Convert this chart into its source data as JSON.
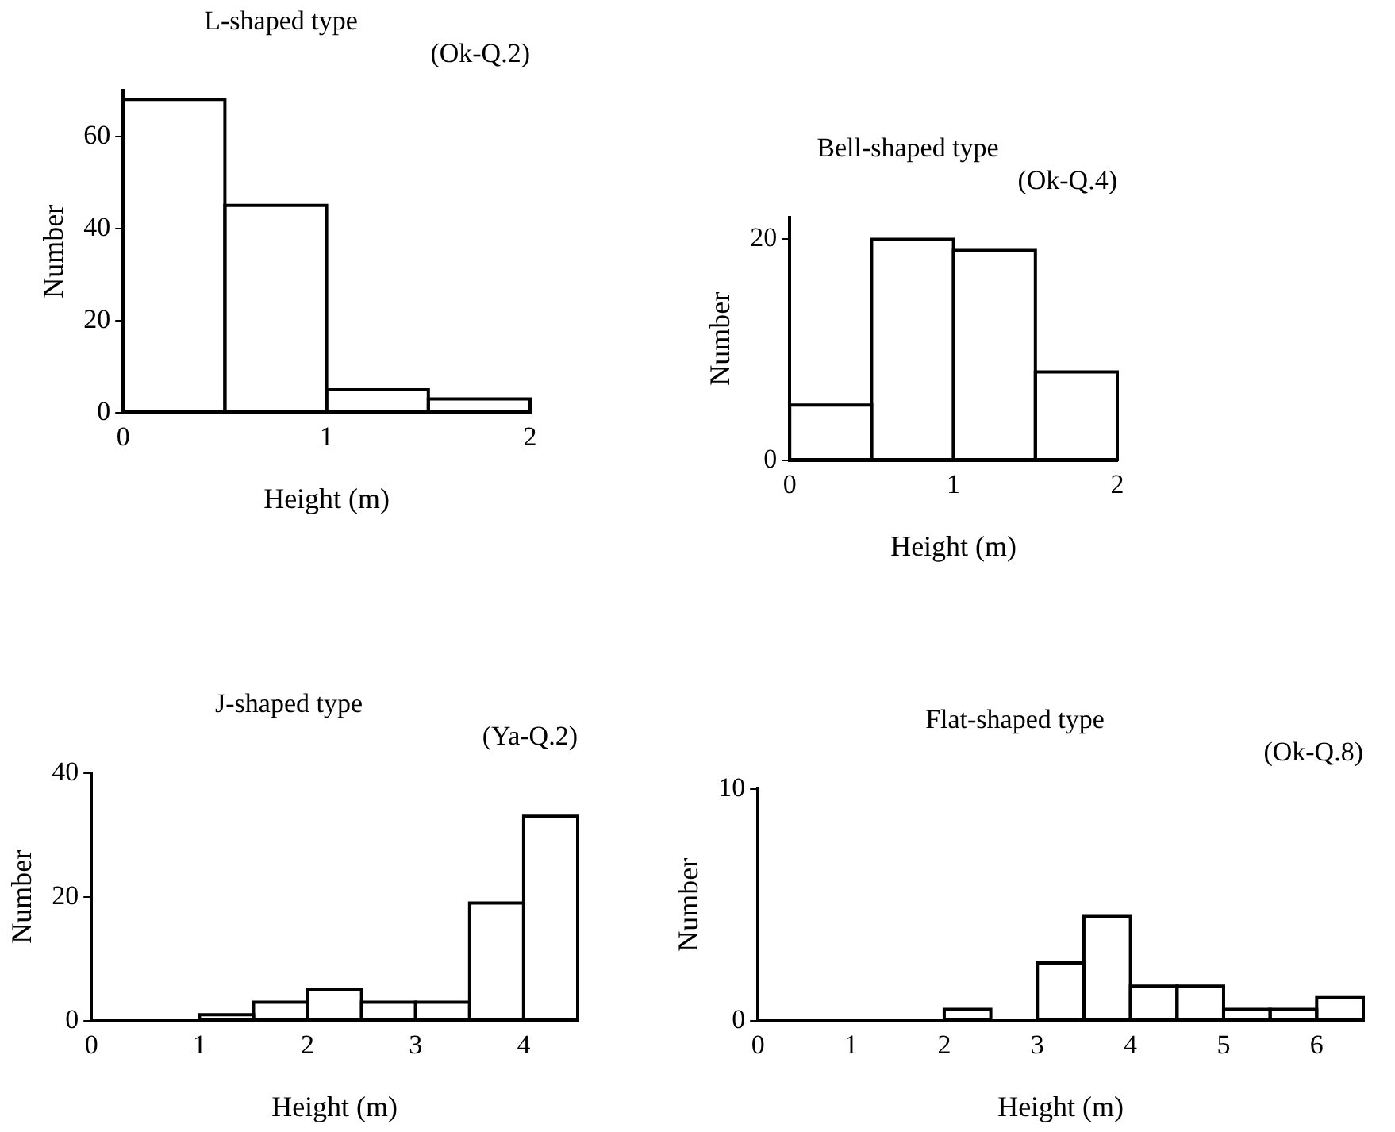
{
  "chart_data": [
    {
      "type": "histogram",
      "title": "L-shaped type",
      "subtitle": "(Ok-Q.2)",
      "xlabel": "Height (m)",
      "ylabel": "Number",
      "bins": [
        0,
        0.5,
        1,
        1.5,
        2
      ],
      "values": [
        68,
        45,
        5,
        3
      ],
      "color": "#000000",
      "xlim": [
        0,
        2
      ],
      "xticks": [
        0,
        1,
        2
      ],
      "ylim": [
        0,
        70
      ],
      "yticks": [
        0,
        20,
        40,
        60
      ],
      "grid": false,
      "legend": false
    },
    {
      "type": "histogram",
      "title": "Bell-shaped type",
      "subtitle": "(Ok-Q.4)",
      "xlabel": "Height (m)",
      "ylabel": "Number",
      "bins": [
        0,
        0.5,
        1,
        1.5,
        2
      ],
      "values": [
        5,
        20,
        19,
        8
      ],
      "color": "#000000",
      "xlim": [
        0,
        2
      ],
      "xticks": [
        0,
        1,
        2
      ],
      "ylim": [
        0,
        22
      ],
      "yticks": [
        0,
        20
      ],
      "grid": false,
      "legend": false
    },
    {
      "type": "histogram",
      "title": "J-shaped type",
      "subtitle": "(Ya-Q.2)",
      "xlabel": "Height (m)",
      "ylabel": "Number",
      "bins": [
        0,
        0.5,
        1,
        1.5,
        2,
        2.5,
        3,
        3.5,
        4,
        4.5
      ],
      "values": [
        0,
        0,
        1,
        3,
        5,
        3,
        3,
        19,
        33
      ],
      "color": "#000000",
      "xlim": [
        0,
        4.5
      ],
      "xticks": [
        0,
        1,
        2,
        3,
        4
      ],
      "ylim": [
        0,
        40
      ],
      "yticks": [
        0,
        20,
        40
      ],
      "grid": false,
      "legend": false
    },
    {
      "type": "histogram",
      "title": "Flat-shaped type",
      "subtitle": "(Ok-Q.8)",
      "xlabel": "Height (m)",
      "ylabel": "Number",
      "bins": [
        0,
        0.5,
        1,
        1.5,
        2,
        2.5,
        3,
        3.5,
        4,
        4.5,
        5,
        5.5,
        6,
        6.5
      ],
      "values": [
        0,
        0,
        0,
        0,
        0.5,
        0,
        2.5,
        4.5,
        1.5,
        1.5,
        0.5,
        0.5,
        1
      ],
      "color": "#000000",
      "xlim": [
        0,
        6.5
      ],
      "xticks": [
        0,
        1,
        2,
        3,
        4,
        5,
        6
      ],
      "ylim": [
        0,
        10
      ],
      "yticks": [
        0,
        10
      ],
      "grid": false,
      "legend": false
    }
  ]
}
